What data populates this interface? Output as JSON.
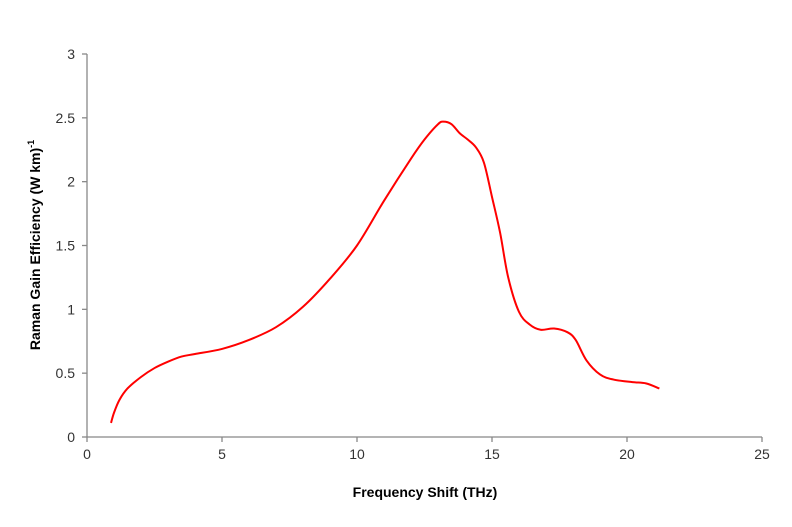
{
  "chart_data": {
    "type": "line",
    "title": "",
    "xlabel": "Frequency Shift (THz)",
    "ylabel": "Raman Gain Efficiency (W km)",
    "ylabel_superscript": "-1",
    "xlim": [
      0,
      25
    ],
    "ylim": [
      0,
      3
    ],
    "xticks": [
      "0",
      "5",
      "10",
      "15",
      "20",
      "25"
    ],
    "yticks": [
      "0",
      "0.5",
      "1",
      "1.5",
      "2",
      "2.5",
      "3"
    ],
    "grid": false,
    "legend": "none",
    "series": [
      {
        "color": "#ff0000",
        "x": [
          0.89,
          1.0,
          1.2,
          1.5,
          2.0,
          2.5,
          3.0,
          3.5,
          4.0,
          5.0,
          6.0,
          7.0,
          8.0,
          9.0,
          10.0,
          11.0,
          12.0,
          12.5,
          13.0,
          13.2,
          13.5,
          13.8,
          14.1,
          14.4,
          14.7,
          15.0,
          15.3,
          15.6,
          16.0,
          16.4,
          16.8,
          17.3,
          17.8,
          18.1,
          18.5,
          19.0,
          19.5,
          20.2,
          20.7,
          21.2
        ],
        "y": [
          0.11,
          0.19,
          0.29,
          0.38,
          0.47,
          0.54,
          0.59,
          0.63,
          0.65,
          0.69,
          0.76,
          0.86,
          1.02,
          1.24,
          1.5,
          1.85,
          2.18,
          2.33,
          2.45,
          2.47,
          2.45,
          2.38,
          2.33,
          2.27,
          2.15,
          1.88,
          1.6,
          1.25,
          0.98,
          0.88,
          0.84,
          0.85,
          0.82,
          0.76,
          0.6,
          0.49,
          0.45,
          0.43,
          0.42,
          0.38
        ]
      }
    ]
  }
}
